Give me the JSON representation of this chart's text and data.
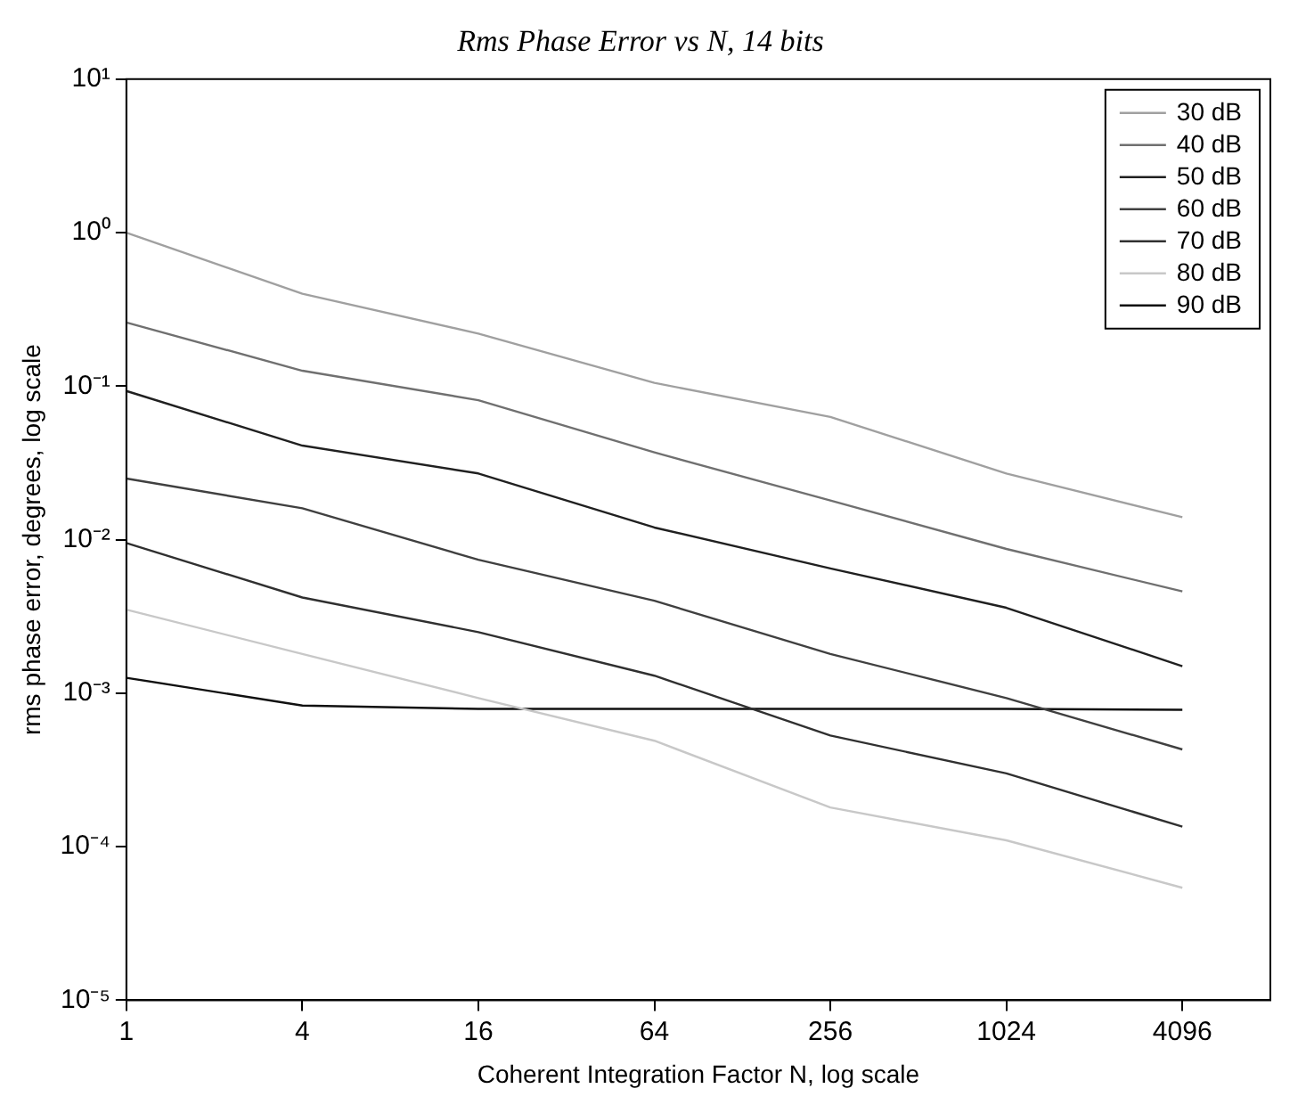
{
  "chart_data": {
    "type": "line",
    "title": "Rms Phase Error vs N, 14 bits",
    "xlabel": "Coherent Integration Factor N, log scale",
    "ylabel": "rms phase error, degrees, log scale",
    "x": [
      1,
      4,
      16,
      64,
      256,
      1024,
      4096
    ],
    "series": [
      {
        "name": "30 dB",
        "color": "#a0a0a0",
        "values": [
          1.0,
          0.4,
          0.22,
          0.105,
          0.063,
          0.027,
          0.014
        ]
      },
      {
        "name": "40 dB",
        "color": "#707070",
        "values": [
          0.26,
          0.126,
          0.081,
          0.037,
          0.018,
          0.0087,
          0.0046
        ]
      },
      {
        "name": "50 dB",
        "color": "#202020",
        "values": [
          0.093,
          0.041,
          0.027,
          0.012,
          0.0065,
          0.0036,
          0.0015
        ]
      },
      {
        "name": "60 dB",
        "color": "#404040",
        "values": [
          0.025,
          0.016,
          0.0074,
          0.004,
          0.0018,
          0.00093,
          0.00043
        ]
      },
      {
        "name": "70 dB",
        "color": "#303030",
        "values": [
          0.0095,
          0.0042,
          0.0025,
          0.0013,
          0.00053,
          0.0003,
          0.000135
        ]
      },
      {
        "name": "80 dB",
        "color": "#c8c8c8",
        "values": [
          0.0035,
          0.0018,
          0.00093,
          0.00049,
          0.00018,
          0.00011,
          5.4e-05
        ]
      },
      {
        "name": "90 dB",
        "color": "#101010",
        "values": [
          0.00126,
          0.00083,
          0.00079,
          0.00079,
          0.00079,
          0.00079,
          0.00078
        ]
      }
    ],
    "log": "xy",
    "xlim": [
      1,
      8192
    ],
    "xticks": [
      1,
      4,
      16,
      64,
      256,
      1024,
      4096
    ],
    "ylim": [
      1e-05,
      10
    ],
    "yticks": [
      {
        "value": 1e-05,
        "label": "10⁻⁵"
      },
      {
        "value": 0.0001,
        "label": "10⁻⁴"
      },
      {
        "value": 0.001,
        "label": "10⁻³"
      },
      {
        "value": 0.01,
        "label": "10⁻²"
      },
      {
        "value": 0.1,
        "label": "10⁻¹"
      },
      {
        "value": 1,
        "label": "10⁰"
      },
      {
        "value": 10,
        "label": "10¹"
      }
    ],
    "grid": false,
    "legend": "top right",
    "marker": "none",
    "line_style": "solid"
  }
}
